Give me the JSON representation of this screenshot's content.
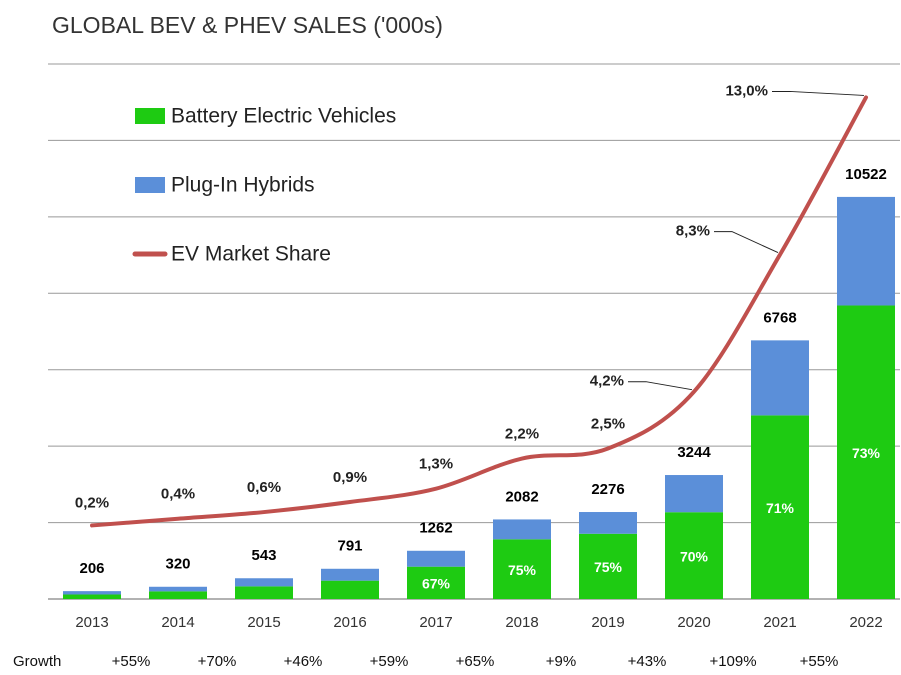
{
  "chart_data": {
    "type": "bar",
    "title": "GLOBAL BEV & PHEV SALES ('000s)",
    "categories": [
      "2013",
      "2014",
      "2015",
      "2016",
      "2017",
      "2018",
      "2019",
      "2020",
      "2021",
      "2022"
    ],
    "series": [
      {
        "name": "Battery Electric Vehicles",
        "color": "#1ecb12",
        "values": [
          118,
          200,
          330,
          480,
          846,
          1562,
          1707,
          2271,
          4805,
          7681
        ],
        "share_labels": [
          null,
          null,
          null,
          null,
          "67%",
          "75%",
          "75%",
          "70%",
          "71%",
          "73%"
        ]
      },
      {
        "name": "Plug-In Hybrids",
        "color": "#5b8fd9",
        "values": [
          88,
          120,
          213,
          311,
          416,
          520,
          569,
          973,
          1963,
          2841
        ]
      },
      {
        "name": "EV Market Share",
        "color": "#c0504d",
        "type": "line",
        "axis": "y2",
        "values": [
          0.2,
          0.4,
          0.6,
          0.9,
          1.3,
          2.2,
          2.5,
          4.2,
          8.3,
          13.0
        ],
        "value_labels": [
          "0,2%",
          "0,4%",
          "0,6%",
          "0,9%",
          "1,3%",
          "2,2%",
          "2,5%",
          "4,2%",
          "8,3%",
          "13,0%"
        ]
      }
    ],
    "totals": [
      206,
      320,
      543,
      791,
      1262,
      2082,
      2276,
      3244,
      6768,
      10522
    ],
    "growth_label": "Growth",
    "growth": [
      "+55%",
      "+70%",
      "+46%",
      "+59%",
      "+65%",
      "+9%",
      "+43%",
      "+109%",
      "+55%"
    ],
    "ylim": [
      0,
      14000
    ],
    "yticks": [
      0,
      2000,
      4000,
      6000,
      8000,
      10000,
      12000,
      14000
    ],
    "y2lim": [
      -2,
      14
    ],
    "grid": true
  }
}
